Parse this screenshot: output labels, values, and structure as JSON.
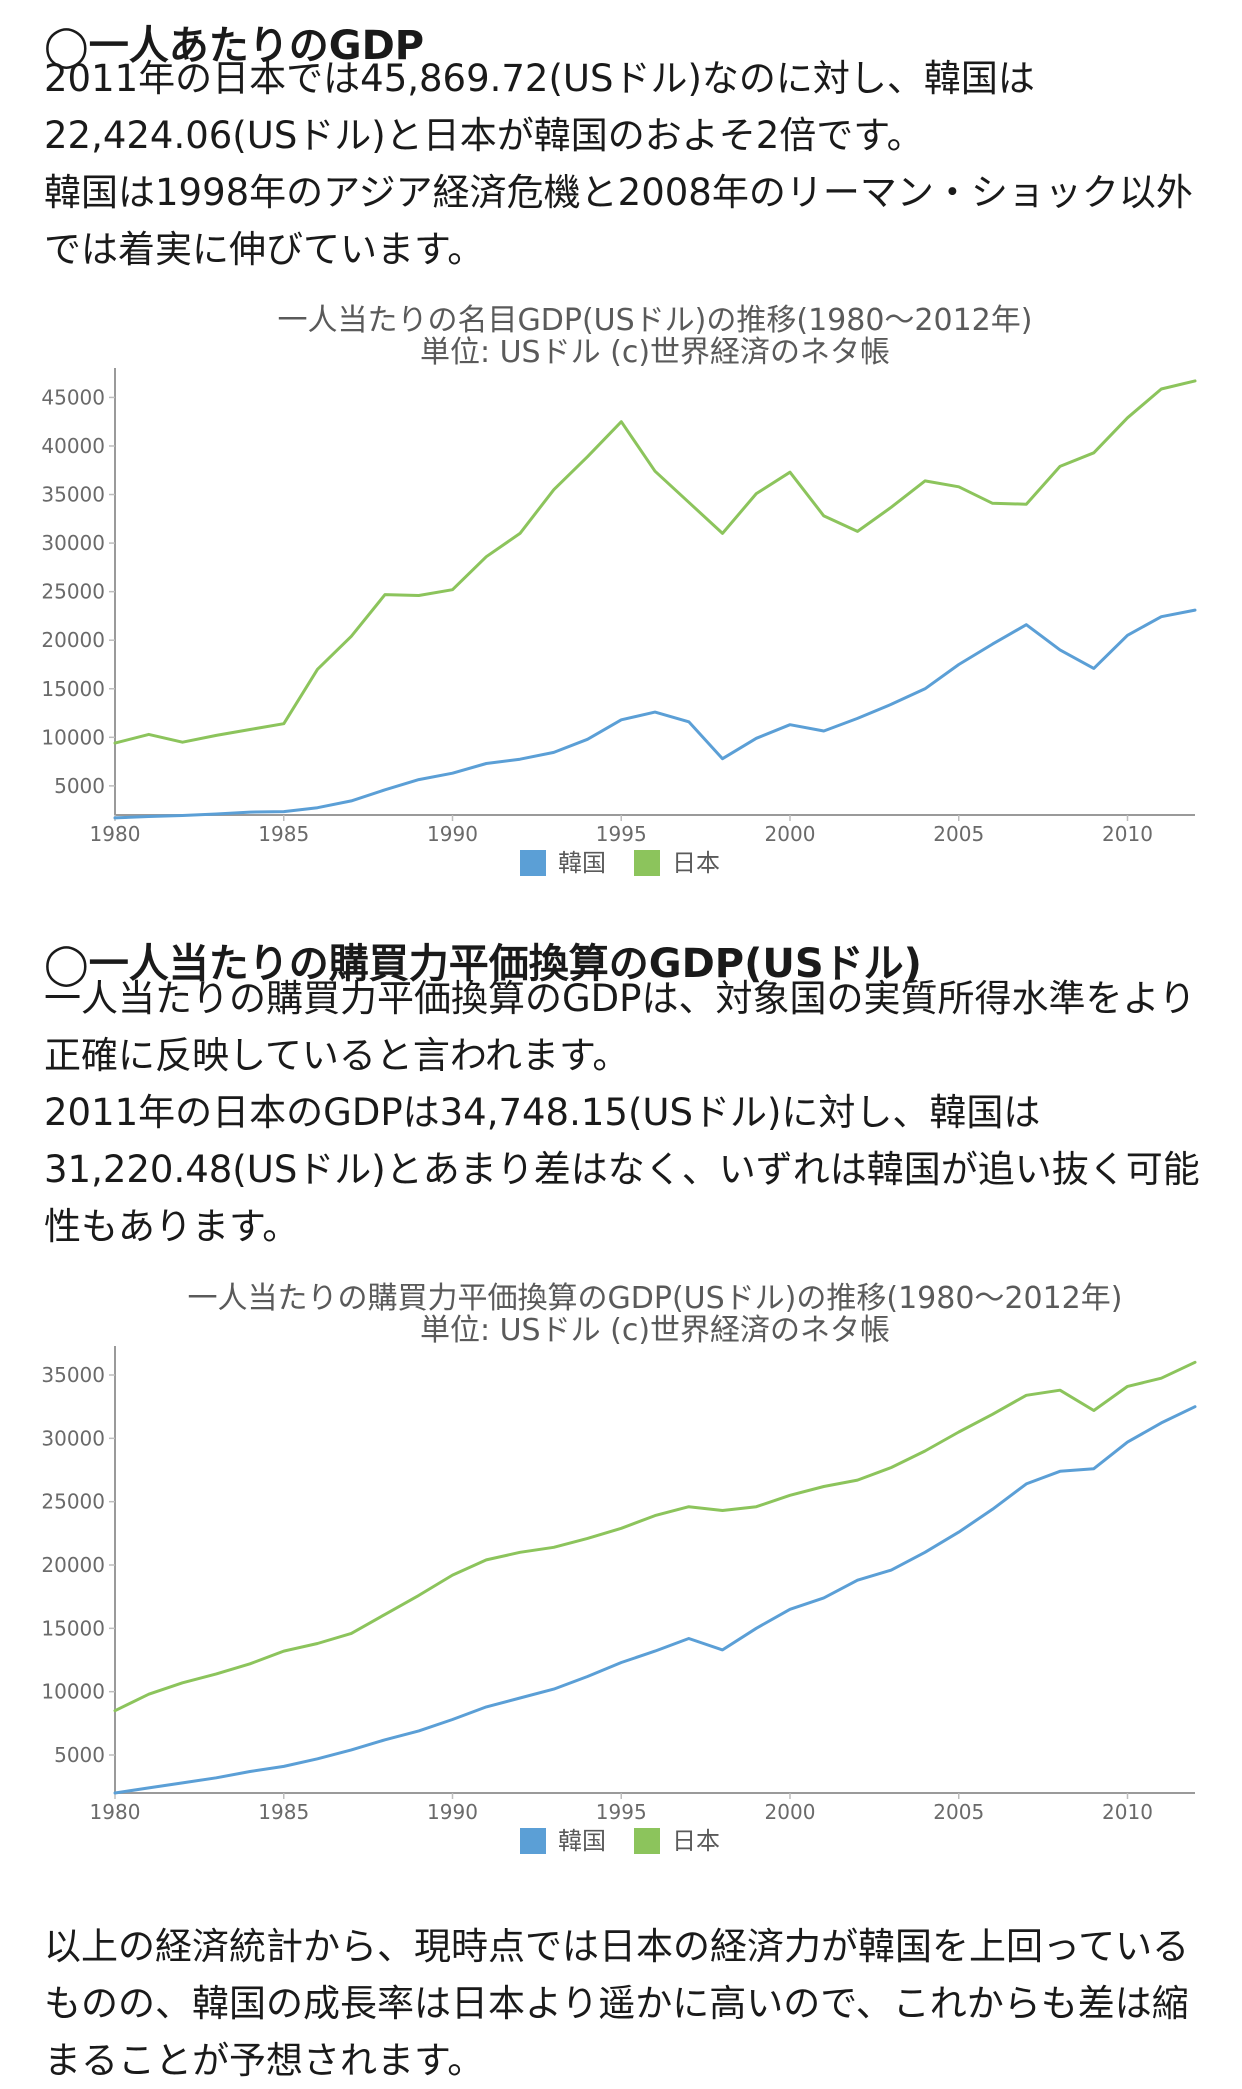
{
  "section1": {
    "heading": "◯一人あたりのGDP",
    "paragraphs": [
      "2011年の日本では45,869.72(USドル)なのに対し、韓国は22,424.06(USドル)と日本が韓国のおよそ2倍です。",
      "韓国は1998年のアジア経済危機と2008年のリーマン・ショック以外では着実に伸びています。"
    ]
  },
  "section2": {
    "heading": "◯一人当たりの購買力平価換算のGDP(USドル)",
    "paragraphs": [
      "一人当たりの購買力平価換算のGDPは、対象国の実質所得水準をより正確に反映していると言われます。",
      "2011年の日本のGDPは34,748.15(USドル)に対し、韓国は31,220.48(USドル)とあまり差はなく、いずれは韓国が追い抜く可能性もあります。"
    ]
  },
  "conclusion": "以上の経済統計から、現時点では日本の経済力が韓国を上回っているものの、韓国の成長率は日本より遥かに高いので、これからも差は縮まることが予想されます。",
  "chart_data": [
    {
      "type": "line",
      "title": "一人当たりの名目GDP(USドル)の推移(1980～2012年)",
      "subtitle": "単位:  USドル  (c)世界経済のネタ帳",
      "x": [
        1980,
        1981,
        1982,
        1983,
        1984,
        1985,
        1986,
        1987,
        1988,
        1989,
        1990,
        1991,
        1992,
        1993,
        1994,
        1995,
        1996,
        1997,
        1998,
        1999,
        2000,
        2001,
        2002,
        2003,
        2004,
        2005,
        2006,
        2007,
        2008,
        2009,
        2010,
        2011,
        2012
      ],
      "xticks": [
        1980,
        1985,
        1990,
        1995,
        2000,
        2005,
        2010
      ],
      "yticks": [
        5000,
        10000,
        15000,
        20000,
        25000,
        30000,
        35000,
        40000,
        45000
      ],
      "xlim": [
        1980,
        2012
      ],
      "ylim": [
        2000,
        47000
      ],
      "legend_position": "bottom",
      "series": [
        {
          "name": "韓国",
          "color": "#5b9fd6",
          "values": [
            1700,
            1850,
            1950,
            2100,
            2300,
            2350,
            2750,
            3450,
            4600,
            5650,
            6300,
            7300,
            7750,
            8450,
            9800,
            11800,
            12600,
            11600,
            7800,
            9900,
            11300,
            10650,
            11950,
            13400,
            15000,
            17500,
            19600,
            21600,
            19000,
            17100,
            20500,
            22424,
            23100
          ]
        },
        {
          "name": "日本",
          "color": "#8cc45c",
          "values": [
            9400,
            10300,
            9500,
            10200,
            10800,
            11400,
            17000,
            20400,
            24700,
            24600,
            25200,
            28600,
            31000,
            35500,
            38900,
            42500,
            37400,
            34200,
            31000,
            35100,
            37300,
            32800,
            31200,
            33700,
            36400,
            35800,
            34100,
            34000,
            37900,
            39300,
            42900,
            45870,
            46700
          ]
        }
      ]
    },
    {
      "type": "line",
      "title": "一人当たりの購買力平価換算のGDP(USドル)の推移(1980～2012年)",
      "subtitle": "単位:  USドル  (c)世界経済のネタ帳",
      "x": [
        1980,
        1981,
        1982,
        1983,
        1984,
        1985,
        1986,
        1987,
        1988,
        1989,
        1990,
        1991,
        1992,
        1993,
        1994,
        1995,
        1996,
        1997,
        1998,
        1999,
        2000,
        2001,
        2002,
        2003,
        2004,
        2005,
        2006,
        2007,
        2008,
        2009,
        2010,
        2011,
        2012
      ],
      "xticks": [
        1980,
        1985,
        1990,
        1995,
        2000,
        2005,
        2010
      ],
      "yticks": [
        5000,
        10000,
        15000,
        20000,
        25000,
        30000,
        35000
      ],
      "xlim": [
        1980,
        2012
      ],
      "ylim": [
        2000,
        36500
      ],
      "legend_position": "bottom",
      "series": [
        {
          "name": "韓国",
          "color": "#5b9fd6",
          "values": [
            2000,
            2400,
            2800,
            3200,
            3700,
            4100,
            4700,
            5400,
            6200,
            6900,
            7800,
            8800,
            9500,
            10200,
            11200,
            12300,
            13200,
            14200,
            13300,
            15000,
            16500,
            17400,
            18800,
            19600,
            21000,
            22600,
            24400,
            26400,
            27400,
            27600,
            29700,
            31220,
            32500
          ]
        },
        {
          "name": "日本",
          "color": "#8cc45c",
          "values": [
            8500,
            9800,
            10700,
            11400,
            12200,
            13200,
            13800,
            14600,
            16100,
            17600,
            19200,
            20400,
            21000,
            21400,
            22100,
            22900,
            23900,
            24600,
            24300,
            24600,
            25500,
            26200,
            26700,
            27700,
            29000,
            30500,
            31900,
            33400,
            33800,
            32200,
            34100,
            34748,
            36000
          ]
        }
      ]
    }
  ]
}
